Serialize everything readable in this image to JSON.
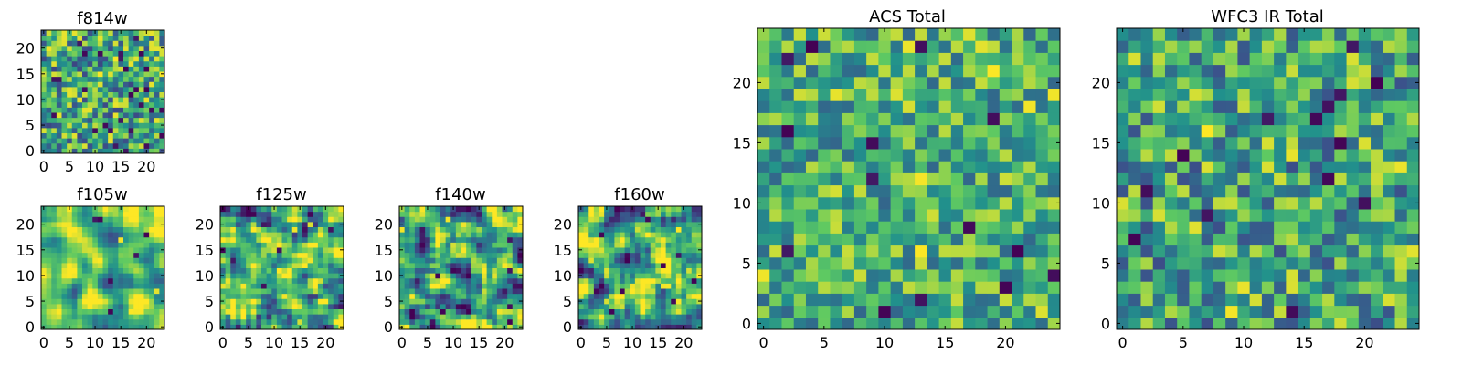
{
  "figure": {
    "background": "#ffffff"
  },
  "colormap": {
    "name": "viridis",
    "stops": [
      "#440154",
      "#3b528b",
      "#21918c",
      "#5ec962",
      "#fde725"
    ]
  },
  "chart_data": [
    {
      "type": "heatmap",
      "title": "f814w",
      "grid_size": 24,
      "xlim": [
        0,
        24
      ],
      "ylim": [
        0,
        24
      ],
      "x_ticks": [
        0,
        5,
        10,
        15,
        20
      ],
      "y_ticks": [
        0,
        5,
        10,
        15,
        20
      ],
      "value_range": [
        0,
        1
      ],
      "typical_value": 0.6,
      "spread": 0.22,
      "seed": 11,
      "smooth": 0,
      "lows": 28,
      "highs": 10
    },
    {
      "type": "heatmap",
      "title": "f105w",
      "grid_size": 24,
      "xlim": [
        0,
        24
      ],
      "ylim": [
        0,
        24
      ],
      "x_ticks": [
        0,
        5,
        10,
        15,
        20
      ],
      "y_ticks": [
        0,
        5,
        10,
        15,
        20
      ],
      "value_range": [
        0,
        1
      ],
      "typical_value": 0.7,
      "spread": 0.2,
      "seed": 23,
      "smooth": 2,
      "lows": 6,
      "highs": 4
    },
    {
      "type": "heatmap",
      "title": "f125w",
      "grid_size": 24,
      "xlim": [
        0,
        24
      ],
      "ylim": [
        0,
        24
      ],
      "x_ticks": [
        0,
        5,
        10,
        15,
        20
      ],
      "y_ticks": [
        0,
        5,
        10,
        15,
        20
      ],
      "value_range": [
        0,
        1
      ],
      "typical_value": 0.62,
      "spread": 0.24,
      "seed": 37,
      "smooth": 1,
      "lows": 6,
      "highs": 6
    },
    {
      "type": "heatmap",
      "title": "f140w",
      "grid_size": 24,
      "xlim": [
        0,
        24
      ],
      "ylim": [
        0,
        24
      ],
      "x_ticks": [
        0,
        5,
        10,
        15,
        20
      ],
      "y_ticks": [
        0,
        5,
        10,
        15,
        20
      ],
      "value_range": [
        0,
        1
      ],
      "typical_value": 0.58,
      "spread": 0.26,
      "seed": 41,
      "smooth": 1,
      "lows": 10,
      "highs": 6
    },
    {
      "type": "heatmap",
      "title": "f160w",
      "grid_size": 24,
      "xlim": [
        0,
        24
      ],
      "ylim": [
        0,
        24
      ],
      "x_ticks": [
        0,
        5,
        10,
        15,
        20
      ],
      "y_ticks": [
        0,
        5,
        10,
        15,
        20
      ],
      "value_range": [
        0,
        1
      ],
      "typical_value": 0.6,
      "spread": 0.26,
      "seed": 53,
      "smooth": 1,
      "lows": 10,
      "highs": 8
    },
    {
      "type": "heatmap",
      "title": "ACS Total",
      "grid_size": 25,
      "xlim": [
        0,
        25
      ],
      "ylim": [
        0,
        25
      ],
      "x_ticks": [
        0,
        5,
        10,
        15,
        20
      ],
      "y_ticks": [
        0,
        5,
        10,
        15,
        20
      ],
      "value_range": [
        0,
        1
      ],
      "typical_value": 0.62,
      "spread": 0.18,
      "seed": 67,
      "smooth": 0,
      "lows": 14,
      "highs": 14
    },
    {
      "type": "heatmap",
      "title": "WFC3 IR Total",
      "grid_size": 25,
      "xlim": [
        0,
        25
      ],
      "ylim": [
        0,
        25
      ],
      "x_ticks": [
        0,
        5,
        10,
        15,
        20
      ],
      "y_ticks": [
        0,
        5,
        10,
        15,
        20
      ],
      "value_range": [
        0,
        1
      ],
      "typical_value": 0.58,
      "spread": 0.2,
      "seed": 79,
      "smooth": 0,
      "lows": 14,
      "highs": 10
    }
  ]
}
